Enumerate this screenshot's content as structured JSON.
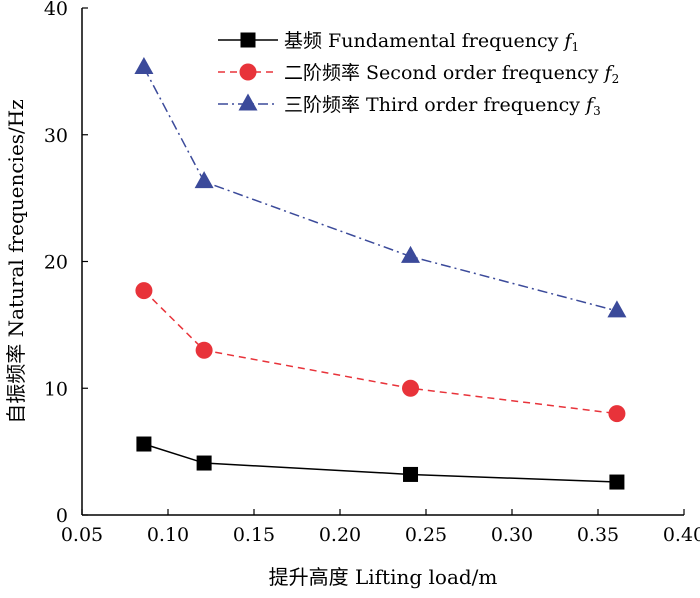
{
  "chart_data": {
    "type": "line",
    "title": "",
    "xlabel": "提升高度 Lifting load/m",
    "ylabel": "自振频率 Natural frequencies/Hz",
    "xlim": [
      0.05,
      0.4
    ],
    "ylim": [
      0,
      40
    ],
    "xticks": [
      "0.05",
      "0.10",
      "0.15",
      "0.20",
      "0.25",
      "0.30",
      "0.35",
      "0.40"
    ],
    "yticks": [
      "0",
      "10",
      "20",
      "30",
      "40"
    ],
    "x": [
      0.086,
      0.121,
      0.241,
      0.361
    ],
    "grid": false,
    "legend_position": "top-right",
    "series": [
      {
        "name": "基频 Fundamental frequency f1",
        "label_main": "基频 Fundamental frequency ",
        "label_sym": "f",
        "label_sub": "1",
        "values": [
          5.6,
          4.1,
          3.2,
          2.6
        ],
        "color": "#000000",
        "marker": "square",
        "dash": "solid"
      },
      {
        "name": "二阶频率 Second order frequency f2",
        "label_main": "二阶频率 Second order frequency ",
        "label_sym": "f",
        "label_sub": "2",
        "values": [
          17.7,
          13.0,
          10.0,
          8.0
        ],
        "color": "#e8333a",
        "marker": "circle",
        "dash": "dashed"
      },
      {
        "name": "三阶频率 Third order frequency f3",
        "label_main": "三阶频率 Third order frequency ",
        "label_sym": "f",
        "label_sub": "3",
        "values": [
          35.3,
          26.3,
          20.4,
          16.1
        ],
        "color": "#3b4a9a",
        "marker": "triangle",
        "dash": "dashdot"
      }
    ]
  }
}
